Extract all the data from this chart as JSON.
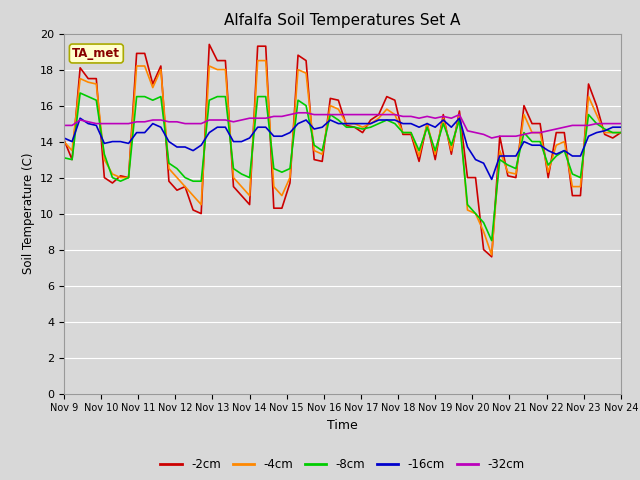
{
  "title": "Alfalfa Soil Temperatures Set A",
  "xlabel": "Time",
  "ylabel": "Soil Temperature (C)",
  "ylim": [
    0,
    20
  ],
  "yticks": [
    0,
    2,
    4,
    6,
    8,
    10,
    12,
    14,
    16,
    18,
    20
  ],
  "bg_color": "#d8d8d8",
  "plot_bg_color": "#d8d8d8",
  "annotation_text": "TA_met",
  "annotation_color": "#880000",
  "annotation_bg": "#ffffcc",
  "annotation_edge": "#aaaa00",
  "x_labels": [
    "Nov 9",
    "Nov 10",
    "Nov 11",
    "Nov 12",
    "Nov 13",
    "Nov 14",
    "Nov 15",
    "Nov 16",
    "Nov 17",
    "Nov 18",
    "Nov 19",
    "Nov 20",
    "Nov 21",
    "Nov 22",
    "Nov 23",
    "Nov 24"
  ],
  "legend_labels": [
    "-2cm",
    "-4cm",
    "-8cm",
    "-16cm",
    "-32cm"
  ],
  "line_colors": [
    "#cc0000",
    "#ff8800",
    "#00cc00",
    "#0000cc",
    "#bb00bb"
  ],
  "line_widths": [
    1.2,
    1.2,
    1.2,
    1.2,
    1.2
  ],
  "series_2cm": [
    14.1,
    13.0,
    18.1,
    17.5,
    17.5,
    12.0,
    11.7,
    12.1,
    12.0,
    18.9,
    18.9,
    17.2,
    18.2,
    11.8,
    11.3,
    11.5,
    10.2,
    10.0,
    19.4,
    18.5,
    18.5,
    11.5,
    11.0,
    10.5,
    19.3,
    19.3,
    10.3,
    10.3,
    11.7,
    18.8,
    18.5,
    13.0,
    12.9,
    16.4,
    16.3,
    14.9,
    14.8,
    14.5,
    15.2,
    15.5,
    16.5,
    16.3,
    14.4,
    14.4,
    12.9,
    15.0,
    13.0,
    15.5,
    13.3,
    15.7,
    12.0,
    12.0,
    8.0,
    7.6,
    14.3,
    12.1,
    12.0,
    16.0,
    15.0,
    15.0,
    12.0,
    14.5,
    14.5,
    11.0,
    11.0,
    17.2,
    16.0,
    14.4,
    14.2,
    14.5
  ],
  "series_4cm": [
    14.0,
    13.5,
    17.5,
    17.3,
    17.2,
    13.0,
    12.2,
    12.0,
    12.0,
    18.2,
    18.2,
    17.0,
    18.0,
    12.5,
    12.0,
    11.5,
    11.0,
    10.5,
    18.2,
    18.0,
    18.0,
    12.0,
    11.5,
    11.0,
    18.5,
    18.5,
    11.5,
    11.0,
    12.0,
    18.0,
    17.8,
    13.5,
    13.3,
    16.0,
    15.8,
    15.0,
    15.0,
    14.8,
    15.0,
    15.3,
    15.8,
    15.5,
    14.5,
    14.5,
    13.2,
    15.0,
    13.3,
    15.3,
    13.5,
    15.5,
    10.2,
    10.0,
    9.0,
    7.7,
    13.5,
    12.3,
    12.2,
    15.5,
    14.5,
    14.5,
    12.3,
    13.8,
    14.0,
    11.5,
    11.5,
    16.5,
    15.5,
    14.5,
    14.5,
    14.5
  ],
  "series_8cm": [
    13.1,
    13.0,
    16.7,
    16.5,
    16.3,
    13.3,
    12.0,
    11.8,
    12.0,
    16.5,
    16.5,
    16.3,
    16.5,
    12.8,
    12.5,
    12.0,
    11.8,
    11.8,
    16.3,
    16.5,
    16.5,
    12.5,
    12.2,
    12.0,
    16.5,
    16.5,
    12.5,
    12.3,
    12.5,
    16.3,
    16.0,
    13.8,
    13.5,
    15.5,
    15.2,
    14.8,
    14.8,
    14.7,
    14.8,
    15.0,
    15.2,
    15.0,
    14.5,
    14.5,
    13.5,
    14.8,
    13.5,
    15.0,
    13.8,
    15.2,
    10.5,
    10.0,
    9.5,
    8.5,
    13.0,
    12.7,
    12.5,
    14.5,
    14.0,
    14.0,
    12.7,
    13.2,
    13.5,
    12.2,
    12.0,
    15.5,
    15.0,
    14.7,
    14.5,
    14.5
  ],
  "series_16cm": [
    14.2,
    14.0,
    15.3,
    15.0,
    14.9,
    13.9,
    14.0,
    14.0,
    13.9,
    14.5,
    14.5,
    15.0,
    14.8,
    14.0,
    13.7,
    13.7,
    13.5,
    13.8,
    14.5,
    14.8,
    14.8,
    14.0,
    14.0,
    14.2,
    14.8,
    14.8,
    14.3,
    14.3,
    14.5,
    15.0,
    15.2,
    14.7,
    14.8,
    15.2,
    15.0,
    15.0,
    15.0,
    15.0,
    15.0,
    15.2,
    15.2,
    15.2,
    15.0,
    15.0,
    14.8,
    15.0,
    14.8,
    15.2,
    14.8,
    15.3,
    13.7,
    13.0,
    12.8,
    11.9,
    13.2,
    13.2,
    13.2,
    14.0,
    13.8,
    13.8,
    13.5,
    13.3,
    13.5,
    13.2,
    13.2,
    14.3,
    14.5,
    14.6,
    14.8,
    14.8
  ],
  "series_32cm": [
    14.9,
    14.9,
    15.2,
    15.1,
    15.0,
    15.0,
    15.0,
    15.0,
    15.0,
    15.1,
    15.1,
    15.2,
    15.2,
    15.1,
    15.1,
    15.0,
    15.0,
    15.0,
    15.2,
    15.2,
    15.2,
    15.1,
    15.2,
    15.3,
    15.3,
    15.3,
    15.4,
    15.4,
    15.5,
    15.6,
    15.6,
    15.5,
    15.5,
    15.5,
    15.5,
    15.5,
    15.5,
    15.5,
    15.5,
    15.5,
    15.5,
    15.5,
    15.4,
    15.4,
    15.3,
    15.4,
    15.3,
    15.4,
    15.3,
    15.5,
    14.6,
    14.5,
    14.4,
    14.2,
    14.3,
    14.3,
    14.3,
    14.4,
    14.5,
    14.5,
    14.6,
    14.7,
    14.8,
    14.9,
    14.9,
    14.9,
    15.0,
    15.0,
    15.0,
    15.0
  ]
}
